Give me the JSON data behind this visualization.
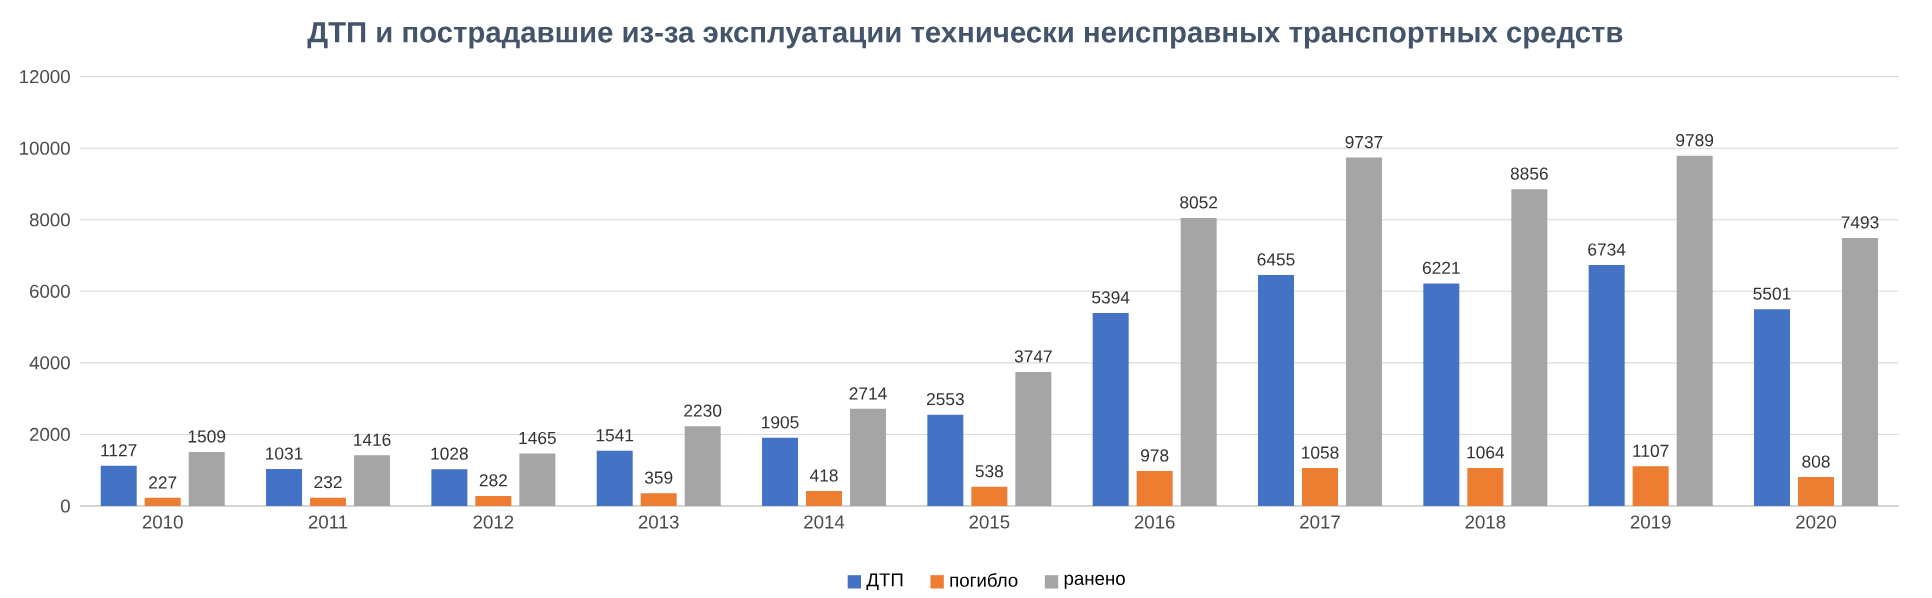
{
  "chart_data": {
    "type": "bar",
    "title": "ДТП и пострадавшие из-за эксплуатации технически неисправных транспортных средств",
    "categories": [
      "2010",
      "2011",
      "2012",
      "2013",
      "2014",
      "2015",
      "2016",
      "2017",
      "2018",
      "2019",
      "2020"
    ],
    "series": [
      {
        "name": "ДТП",
        "color": "#4472c4",
        "values": [
          1127,
          1031,
          1028,
          1541,
          1905,
          2553,
          5394,
          6455,
          6221,
          6734,
          5501
        ]
      },
      {
        "name": "погибло",
        "color": "#ed7d31",
        "values": [
          227,
          232,
          282,
          359,
          418,
          538,
          978,
          1058,
          1064,
          1107,
          808
        ]
      },
      {
        "name": "ранено",
        "color": "#a5a5a5",
        "values": [
          1509,
          1416,
          1465,
          2230,
          2714,
          3747,
          8052,
          9737,
          8856,
          9789,
          7493
        ]
      }
    ],
    "ylim": [
      0,
      12000
    ],
    "yticks": [
      0,
      2000,
      4000,
      6000,
      8000,
      10000,
      12000
    ],
    "grid": "y",
    "legend": "bottom",
    "data_labels": true
  }
}
